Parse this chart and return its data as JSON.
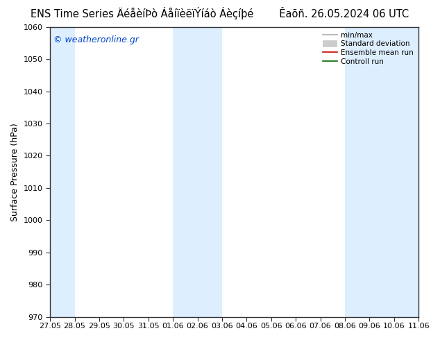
{
  "title_left": "ENS Time Series ÄéåèíÞò ÁåíïèëïÝíáò Áèçíþé",
  "title_right": "Êaõñ. 26.05.2024 06 UTC",
  "ylabel": "Surface Pressure (hPa)",
  "watermark": "© weatheronline.gr",
  "ylim": [
    970,
    1060
  ],
  "yticks": [
    970,
    980,
    990,
    1000,
    1010,
    1020,
    1030,
    1040,
    1050,
    1060
  ],
  "xtick_labels": [
    "27.05",
    "28.05",
    "29.05",
    "30.05",
    "31.05",
    "01.06",
    "02.06",
    "03.06",
    "04.06",
    "05.06",
    "06.06",
    "07.06",
    "08.06",
    "09.06",
    "10.06",
    "11.06"
  ],
  "bg_color": "#ffffff",
  "plot_bg": "#ddeeff",
  "shaded_cols": [
    0,
    5,
    6,
    12,
    13,
    14
  ],
  "legend_items": [
    {
      "label": "min/max",
      "color": "#aaaaaa",
      "lw": 1.2,
      "style": "-"
    },
    {
      "label": "Standard deviation",
      "color": "#cccccc",
      "lw": 7,
      "style": "-"
    },
    {
      "label": "Ensemble mean run",
      "color": "#cc0000",
      "lw": 1.2,
      "style": "-"
    },
    {
      "label": "Controll run",
      "color": "#006600",
      "lw": 1.2,
      "style": "-"
    }
  ],
  "title_fontsize": 10.5,
  "axis_label_fontsize": 9,
  "tick_fontsize": 8,
  "watermark_color": "#0044cc",
  "watermark_fontsize": 9
}
